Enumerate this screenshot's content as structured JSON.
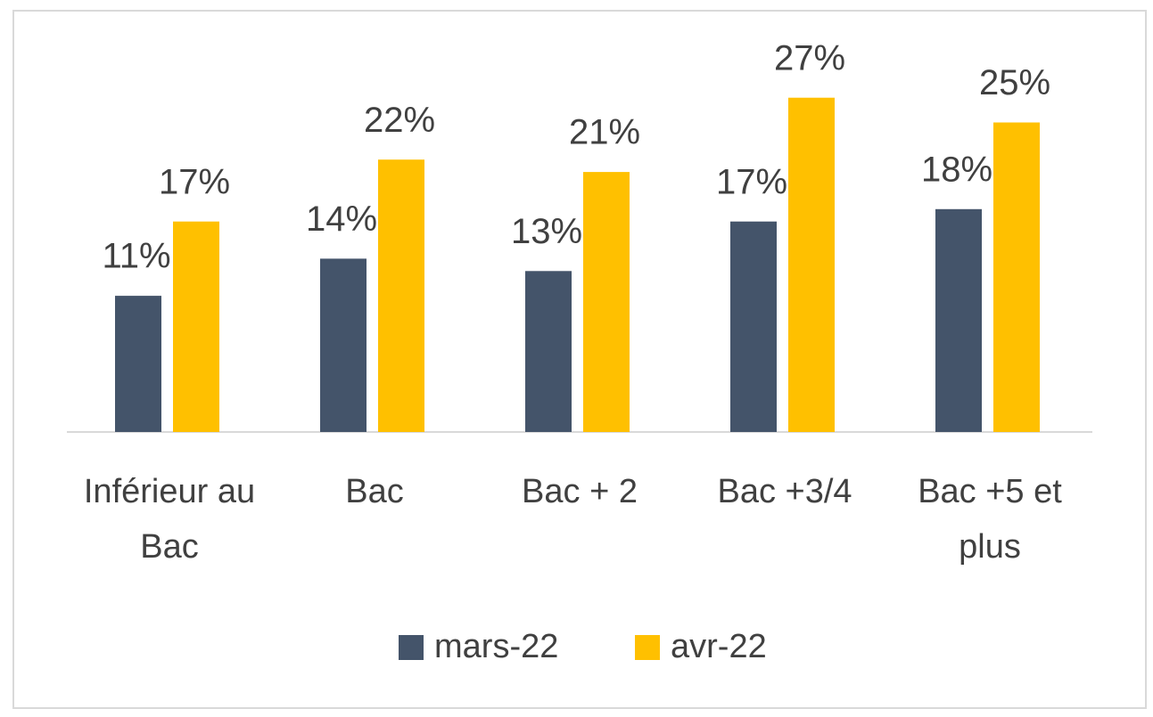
{
  "chart_data": {
    "type": "bar",
    "categories": [
      "Inférieur au Bac",
      "Bac",
      "Bac + 2",
      "Bac +3/4",
      "Bac +5 et plus"
    ],
    "series": [
      {
        "name": "mars-22",
        "color": "#44546a",
        "values": [
          11,
          14,
          13,
          17,
          18
        ],
        "value_labels": [
          "11%",
          "14%",
          "13%",
          "17%",
          "18%"
        ]
      },
      {
        "name": "avr-22",
        "color": "#ffc000",
        "values": [
          17,
          22,
          21,
          27,
          25
        ],
        "value_labels": [
          "17%",
          "22%",
          "21%",
          "27%",
          "25%"
        ]
      }
    ],
    "legend": "bottom"
  }
}
